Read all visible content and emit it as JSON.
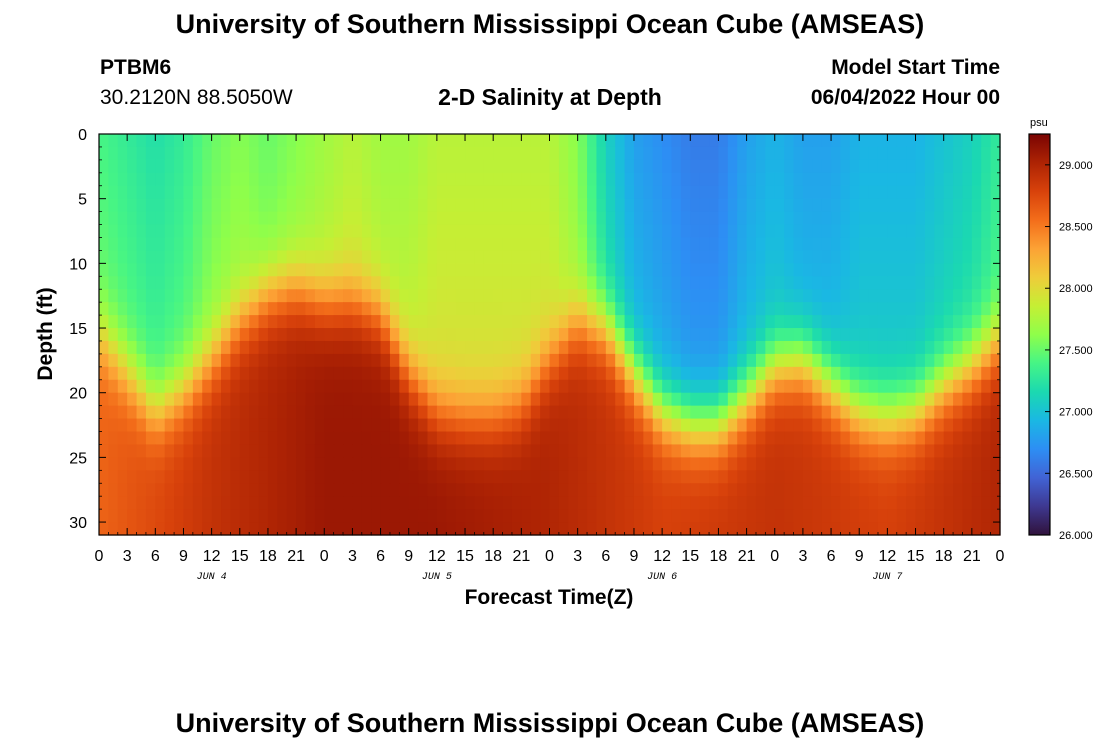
{
  "header": {
    "title": "University of Southern Mississippi Ocean Cube (AMSEAS)",
    "station": "PTBM6",
    "coordinates": "30.2120N  88.5050W",
    "plot_title": "2-D Salinity at Depth",
    "model_start_label": "Model Start Time",
    "model_start_value": "06/04/2022 Hour 00"
  },
  "footer": {
    "title": "University of Southern Mississippi Ocean Cube (AMSEAS)"
  },
  "chart_data": {
    "type": "heatmap",
    "title": "2-D Salinity at Depth",
    "xlabel": "Forecast Time(Z)",
    "ylabel": "Depth (ft)",
    "x_hours_range": [
      0,
      96
    ],
    "x_tick_step_hours": 3,
    "x_tick_labels": [
      "0",
      "3",
      "6",
      "9",
      "12",
      "15",
      "18",
      "21",
      "0",
      "3",
      "6",
      "9",
      "12",
      "15",
      "18",
      "21",
      "0",
      "3",
      "6",
      "9",
      "12",
      "15",
      "18",
      "21",
      "0",
      "3",
      "6",
      "9",
      "12",
      "15",
      "18",
      "21",
      "0"
    ],
    "day_labels": [
      {
        "label": "JUN 4",
        "hour": 12
      },
      {
        "label": "JUN 5",
        "hour": 36
      },
      {
        "label": "JUN 6",
        "hour": 60
      },
      {
        "label": "JUN 7",
        "hour": 84
      }
    ],
    "ylim": [
      0,
      31
    ],
    "y_ticks": [
      0,
      5,
      10,
      15,
      20,
      25,
      30
    ],
    "color_scale": {
      "unit": "psu",
      "min": 26.0,
      "max": 29.25,
      "tick_labels": [
        "26.000",
        "26.500",
        "27.000",
        "27.500",
        "28.000",
        "28.500",
        "29.000"
      ],
      "tick_values": [
        26.0,
        26.5,
        27.0,
        27.5,
        28.0,
        28.5,
        29.0
      ],
      "colors": [
        "#30123b",
        "#3e3890",
        "#4163d5",
        "#2d8ef4",
        "#1ab8e3",
        "#1bd9b0",
        "#46f585",
        "#8ffe4a",
        "#c5ef34",
        "#efcc3a",
        "#fca235",
        "#f36d1a",
        "#d8420b",
        "#ad2304",
        "#7a0403"
      ]
    },
    "interface_depth_ft": {
      "hours": [
        0,
        3,
        6,
        9,
        12,
        15,
        18,
        21,
        24,
        27,
        30,
        33,
        36,
        39,
        42,
        45,
        48,
        51,
        54,
        57,
        60,
        63,
        66,
        69,
        72,
        75,
        78,
        81,
        84,
        87,
        90,
        93,
        96
      ],
      "depths": [
        15.5,
        18.5,
        21.5,
        20.0,
        17.5,
        14.5,
        12.5,
        12.0,
        13.0,
        13.0,
        14.0,
        18.5,
        21.5,
        22.0,
        22.0,
        21.0,
        17.5,
        14.5,
        15.0,
        18.5,
        21.5,
        22.5,
        22.5,
        20.5,
        18.0,
        17.5,
        19.5,
        21.5,
        22.0,
        21.5,
        19.5,
        18.0,
        16.0
      ]
    },
    "surface_salinity_psu": {
      "hours": [
        0,
        3,
        6,
        9,
        12,
        15,
        18,
        21,
        24,
        27,
        30,
        33,
        36,
        39,
        42,
        45,
        48,
        51,
        54,
        57,
        60,
        63,
        66,
        69,
        72,
        75,
        78,
        81,
        84,
        87,
        90,
        93,
        96
      ],
      "values": [
        27.4,
        27.3,
        27.2,
        27.3,
        27.5,
        27.6,
        27.5,
        27.6,
        27.7,
        27.8,
        27.7,
        27.7,
        27.8,
        27.8,
        27.8,
        27.8,
        27.8,
        27.6,
        27.1,
        26.8,
        26.7,
        26.6,
        26.6,
        26.8,
        26.9,
        26.8,
        26.8,
        26.9,
        26.9,
        26.9,
        27.0,
        27.1,
        27.3
      ]
    },
    "bottom_salinity_psu": {
      "hours": [
        0,
        12,
        24,
        36,
        48,
        60,
        72,
        84,
        96
      ],
      "values": [
        28.6,
        28.9,
        29.1,
        29.1,
        29.0,
        28.8,
        28.9,
        28.8,
        29.0
      ]
    }
  }
}
